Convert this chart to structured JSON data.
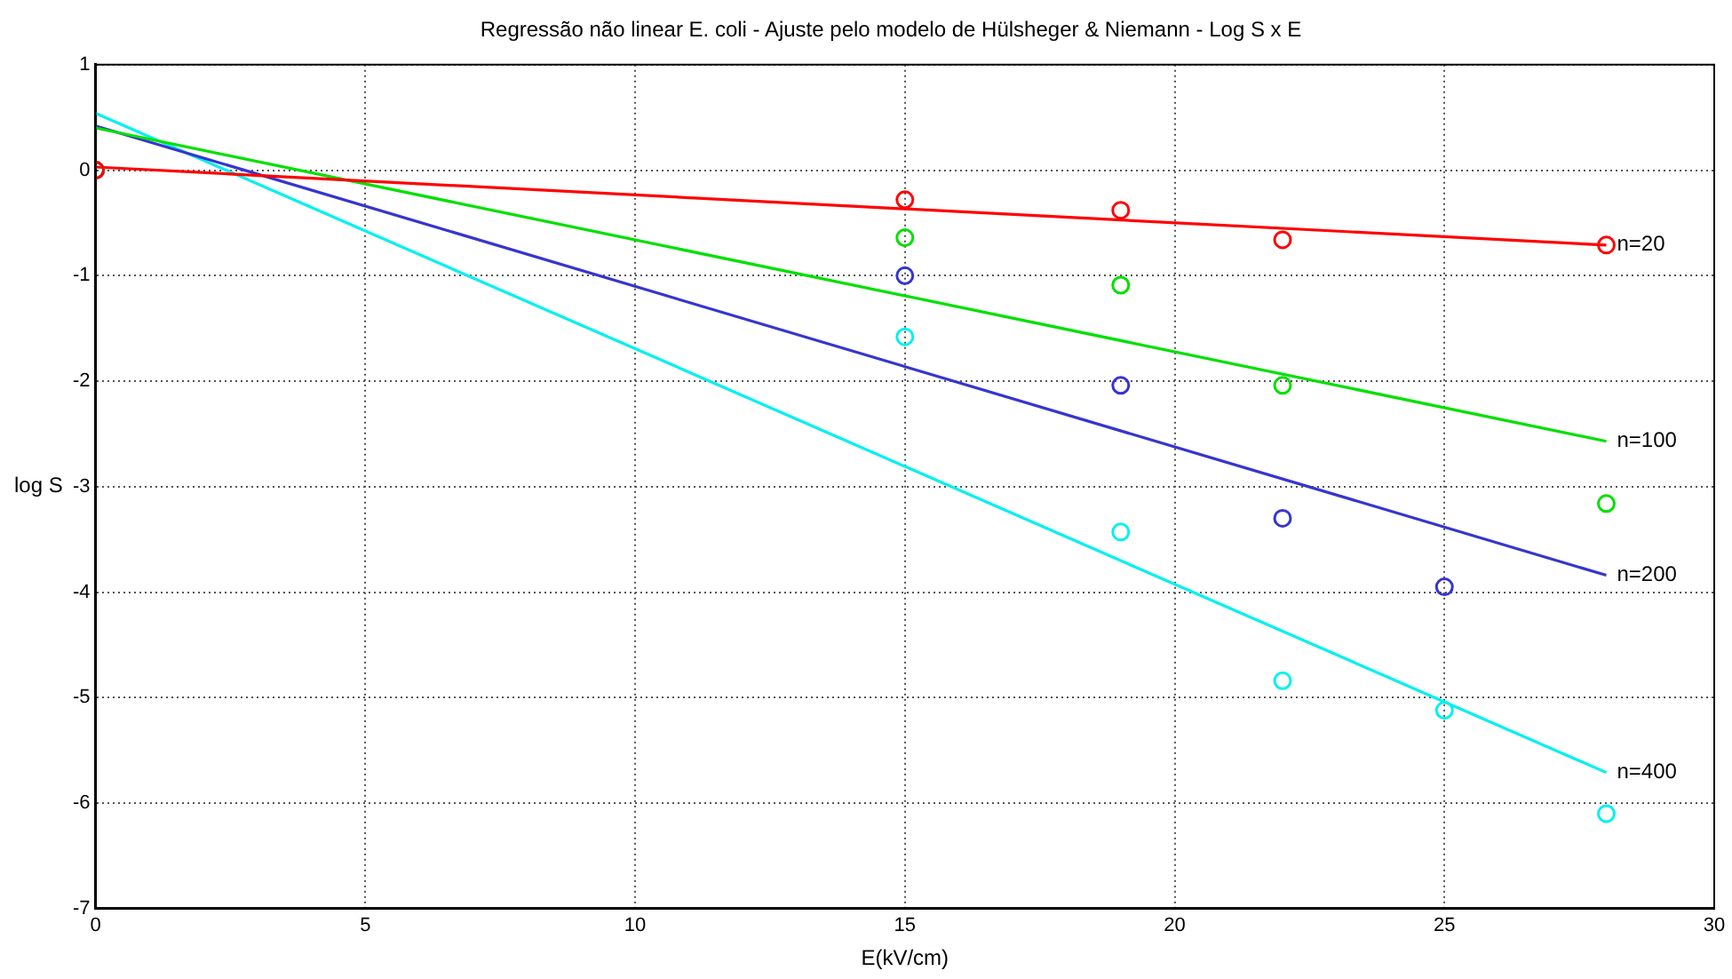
{
  "chart_data": {
    "type": "scatter",
    "title": "Regressão não linear E. coli - Ajuste pelo modelo de Hülsheger & Niemann - Log S x E",
    "xlabel": "E(kV/cm)",
    "ylabel": "log S",
    "xlim": [
      0,
      30
    ],
    "xticks": [
      0,
      5,
      10,
      15,
      20,
      25,
      30
    ],
    "ylim": [
      -7,
      1
    ],
    "yticks": [
      -7,
      -6,
      -5,
      -4,
      -3,
      -2,
      -1,
      0,
      1
    ],
    "grid": true,
    "legend": false,
    "marker": "circle",
    "series": [
      {
        "color": "#ff0000",
        "x": [
          0,
          15,
          19,
          22,
          28
        ],
        "values": [
          0,
          -0.28,
          -0.38,
          -0.66,
          -0.71
        ]
      },
      {
        "color": "#00e000",
        "x": [
          0,
          15,
          19,
          22,
          28
        ],
        "values": [
          0,
          -0.64,
          -1.09,
          -2.04,
          -3.16
        ]
      },
      {
        "color": "#3535d0",
        "x": [
          0,
          15,
          19,
          22,
          25
        ],
        "values": [
          0,
          -1.0,
          -2.04,
          -3.3,
          -3.95
        ]
      },
      {
        "color": "#00f0f0",
        "x": [
          0,
          15,
          19,
          22,
          25,
          28
        ],
        "values": [
          0,
          -1.58,
          -3.43,
          -4.84,
          -5.12,
          -6.1
        ]
      },
      {
        "type": "line",
        "name": "n=20",
        "marker": "none",
        "color": "#ff0000",
        "x": [
          0,
          28
        ],
        "values": [
          0.03,
          -0.71
        ]
      },
      {
        "type": "line",
        "name": "n=100",
        "marker": "none",
        "color": "#00e000",
        "x": [
          0,
          28
        ],
        "values": [
          0.4,
          -2.57
        ]
      },
      {
        "type": "line",
        "name": "n=200",
        "marker": "none",
        "color": "#3535d0",
        "x": [
          0,
          28
        ],
        "values": [
          0.42,
          -3.84
        ]
      },
      {
        "type": "line",
        "name": "n=400",
        "marker": "none",
        "color": "#00f0f0",
        "x": [
          0,
          28
        ],
        "values": [
          0.54,
          -5.71
        ]
      }
    ]
  }
}
